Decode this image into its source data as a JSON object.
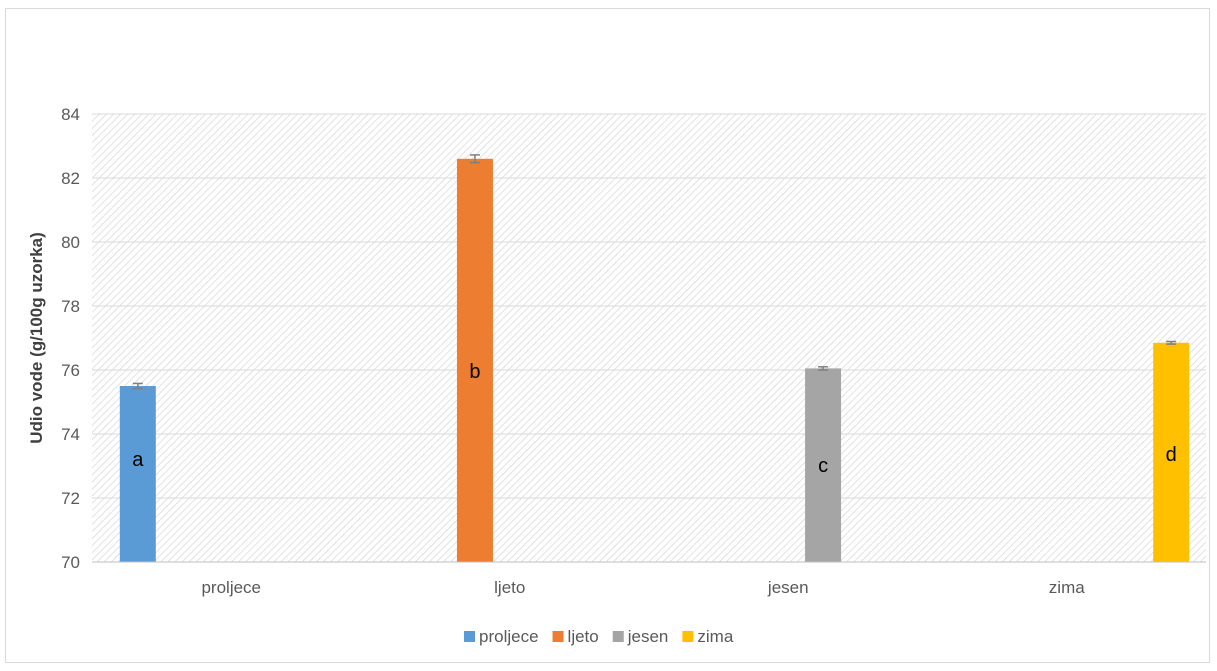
{
  "chart_data": {
    "type": "bar",
    "categories": [
      "proljece",
      "ljeto",
      "jesen",
      "zima"
    ],
    "values": [
      75.5,
      82.6,
      76.05,
      76.85
    ],
    "errors": [
      0.08,
      0.12,
      0.05,
      0.04
    ],
    "bar_labels": [
      "a",
      "b",
      "c",
      "d"
    ],
    "colors": [
      "#5b9bd5",
      "#ed7d31",
      "#a5a5a5",
      "#ffc000"
    ],
    "series": [
      {
        "name": "proljece",
        "color": "#5b9bd5"
      },
      {
        "name": "ljeto",
        "color": "#ed7d31"
      },
      {
        "name": "jesen",
        "color": "#a5a5a5"
      },
      {
        "name": "zima",
        "color": "#ffc000"
      }
    ],
    "title": "",
    "xlabel": "",
    "ylabel": "Udio vode  (g/100g uzorka)",
    "ylim": [
      70,
      84
    ],
    "yticks": [
      "70",
      "72",
      "74",
      "76",
      "78",
      "80",
      "82",
      "84"
    ],
    "grid": true,
    "legend_position": "bottom"
  }
}
